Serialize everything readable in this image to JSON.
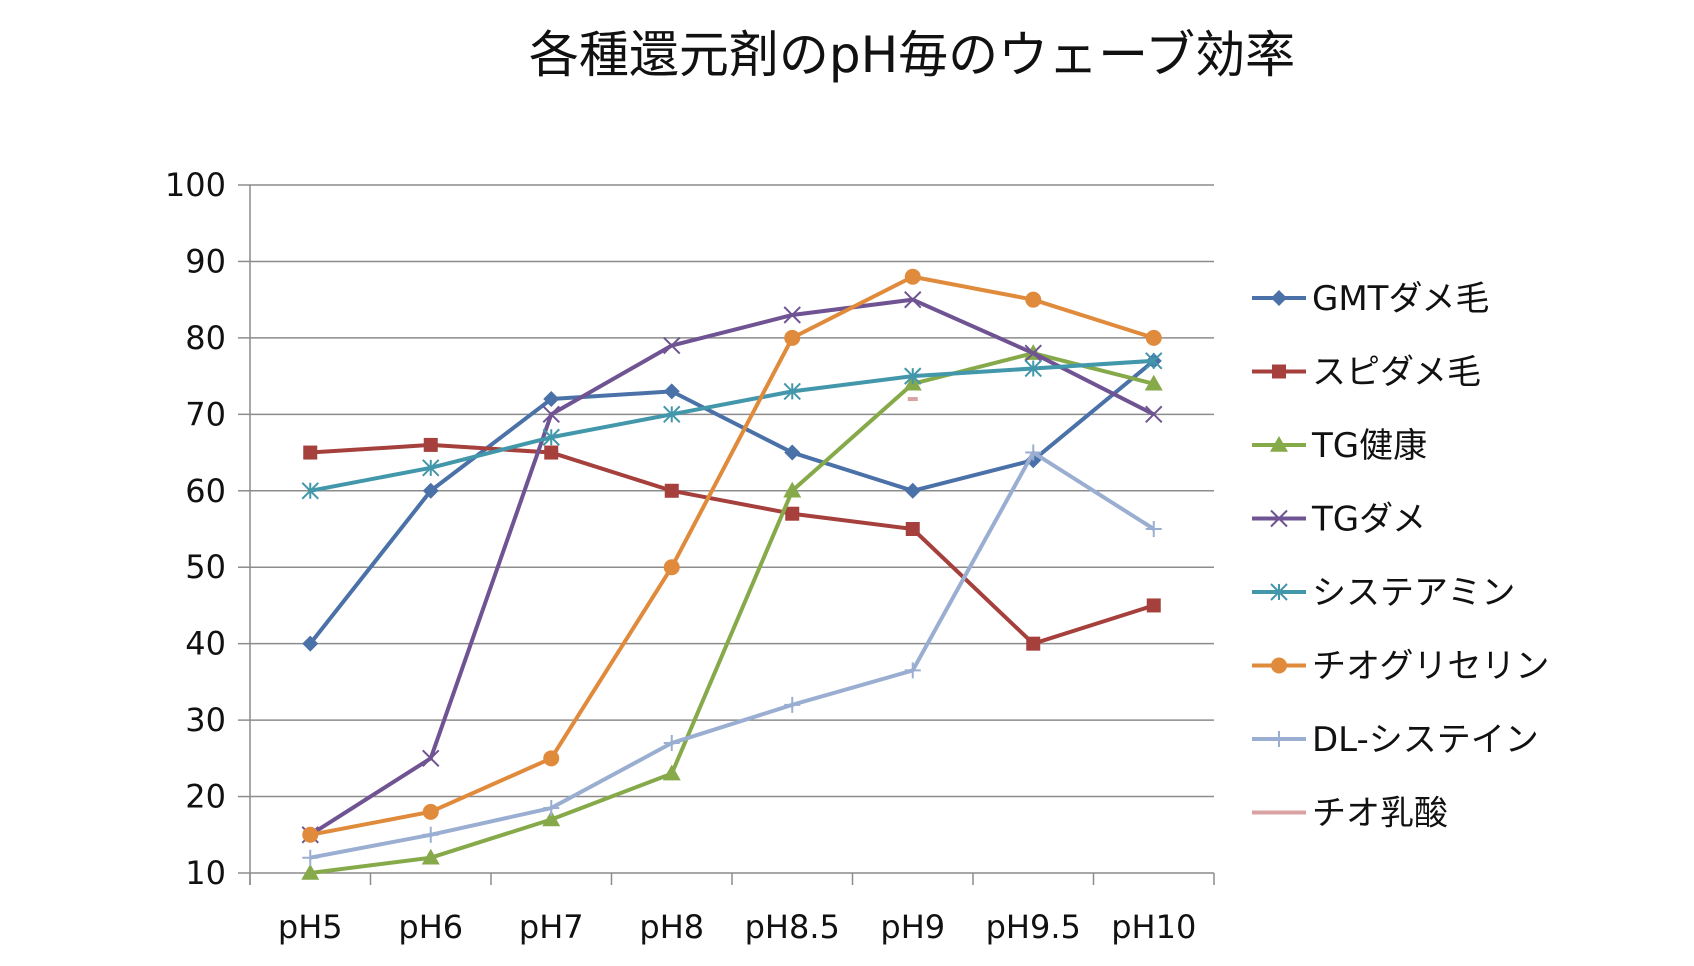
{
  "chart_data": {
    "type": "line",
    "title": "各種還元剤のpH毎のウェーブ効率",
    "xlabel": "",
    "ylabel": "",
    "categories": [
      "pH5",
      "pH6",
      "pH7",
      "pH8",
      "pH8.5",
      "pH9",
      "pH9.5",
      "pH10"
    ],
    "ylim": [
      10,
      100
    ],
    "yticks": [
      10,
      20,
      30,
      40,
      50,
      60,
      70,
      80,
      90,
      100
    ],
    "grid": true,
    "legend_position": "right",
    "series": [
      {
        "name": "GMTダメ毛",
        "color": "#4a71a8",
        "marker": "diamond",
        "values": [
          40,
          60,
          72,
          73,
          65,
          60,
          64,
          77
        ]
      },
      {
        "name": "スピダメ毛",
        "color": "#a5403d",
        "marker": "square",
        "values": [
          65,
          66,
          65,
          60,
          57,
          55,
          40,
          45
        ]
      },
      {
        "name": "TG健康",
        "color": "#86a94a",
        "marker": "triangle",
        "values": [
          10,
          12,
          17,
          23,
          60,
          74,
          78,
          74
        ]
      },
      {
        "name": "TGダメ",
        "color": "#6f5392",
        "marker": "x",
        "values": [
          15,
          25,
          70,
          79,
          83,
          85,
          78,
          70
        ]
      },
      {
        "name": "システアミン",
        "color": "#4297ab",
        "marker": "star",
        "values": [
          60,
          63,
          67,
          70,
          73,
          75,
          76,
          77
        ]
      },
      {
        "name": "チオグリセリン",
        "color": "#e08a3c",
        "marker": "circle",
        "values": [
          15,
          18,
          25,
          50,
          80,
          88,
          85,
          80
        ]
      },
      {
        "name": "DL-システイン",
        "color": "#9aaed2",
        "marker": "plus",
        "values": [
          12,
          15,
          18.5,
          27,
          32,
          36.5,
          65,
          55
        ]
      },
      {
        "name": "チオ乳酸",
        "color": "#d8a3a2",
        "marker": "dash",
        "values": [
          null,
          null,
          null,
          null,
          null,
          72,
          null,
          null
        ]
      }
    ]
  }
}
